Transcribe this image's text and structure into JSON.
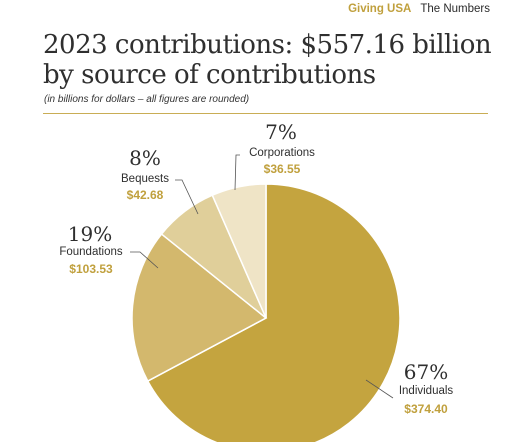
{
  "header": {
    "org": "Giving USA",
    "section": "The Numbers"
  },
  "chart_data": {
    "type": "pie",
    "title": "2023 contributions: $557.16 billion by source of contributions",
    "subtitle": "(in billions for dollars – all figures are rounded)",
    "slices": [
      {
        "category": "Individuals",
        "percent_label": "67%",
        "value": 374.4,
        "value_label": "$374.40",
        "color": "#c4a43f"
      },
      {
        "category": "Foundations",
        "percent_label": "19%",
        "value": 103.53,
        "value_label": "$103.53",
        "color": "#d3b86d"
      },
      {
        "category": "Bequests",
        "percent_label": "8%",
        "value": 42.68,
        "value_label": "$42.68",
        "color": "#e0cf9a"
      },
      {
        "category": "Corporations",
        "percent_label": "7%",
        "value": 36.55,
        "value_label": "$36.55",
        "color": "#efe4c6"
      }
    ]
  }
}
